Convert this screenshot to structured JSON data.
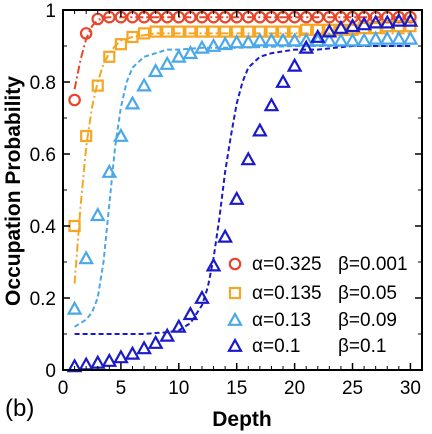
{
  "chart_data": {
    "type": "scatter",
    "panel_label": "(b)",
    "xlabel": "Depth",
    "ylabel": "Occupation Probability",
    "xlim": [
      0,
      31
    ],
    "ylim": [
      0,
      1
    ],
    "xticks": [
      0,
      5,
      10,
      15,
      20,
      25,
      30
    ],
    "yticks": [
      0,
      0.2,
      0.4,
      0.6,
      0.8,
      1
    ],
    "ytick_labels": [
      "0",
      "0.2",
      "0.4",
      "0.6",
      "0.8",
      "1"
    ],
    "legend_position": "lower-right",
    "series": [
      {
        "name": "α=0.325 β=0.001",
        "alpha_label": "α=0.325",
        "beta_label": "β=0.001",
        "marker": "circle",
        "color": "#e8462a",
        "x": [
          1,
          2,
          3,
          4,
          5,
          6,
          7,
          8,
          9,
          10,
          11,
          12,
          13,
          14,
          15,
          16,
          17,
          18,
          19,
          20,
          21,
          22,
          23,
          24,
          25,
          26,
          27,
          28,
          29,
          30
        ],
        "y": [
          0.75,
          0.935,
          0.975,
          0.98,
          0.98,
          0.98,
          0.98,
          0.98,
          0.98,
          0.98,
          0.98,
          0.98,
          0.98,
          0.98,
          0.98,
          0.98,
          0.98,
          0.98,
          0.98,
          0.98,
          0.98,
          0.98,
          0.98,
          0.98,
          0.98,
          0.98,
          0.98,
          0.98,
          0.98,
          0.98
        ],
        "curve": {
          "style": "dash-dot",
          "x": [
            1,
            1.5,
            2,
            2.5,
            3,
            3.5,
            4,
            5,
            6,
            8,
            10,
            15,
            20,
            25,
            30
          ],
          "y": [
            0.78,
            0.86,
            0.92,
            0.955,
            0.972,
            0.978,
            0.98,
            0.98,
            0.98,
            0.98,
            0.98,
            0.98,
            0.98,
            0.98,
            0.98
          ]
        }
      },
      {
        "name": "α=0.135 β=0.05",
        "alpha_label": "α=0.135",
        "beta_label": "β=0.05",
        "marker": "square",
        "color": "#f5a623",
        "x": [
          1,
          2,
          3,
          4,
          5,
          6,
          7,
          8,
          9,
          10,
          11,
          12,
          13,
          14,
          15,
          16,
          17,
          18,
          19,
          20,
          21,
          22,
          23,
          24,
          25,
          26,
          27,
          28,
          29,
          30
        ],
        "y": [
          0.4,
          0.65,
          0.79,
          0.87,
          0.905,
          0.925,
          0.935,
          0.94,
          0.94,
          0.94,
          0.94,
          0.94,
          0.94,
          0.94,
          0.94,
          0.94,
          0.94,
          0.94,
          0.94,
          0.94,
          0.945,
          0.945,
          0.945,
          0.945,
          0.945,
          0.95,
          0.95,
          0.955,
          0.955,
          0.955
        ],
        "curve": {
          "style": "dash-dot",
          "x": [
            1,
            1.5,
            2,
            2.5,
            3,
            3.5,
            4,
            4.5,
            5,
            6,
            7,
            8,
            10,
            15,
            20,
            25,
            30
          ],
          "y": [
            0.24,
            0.45,
            0.62,
            0.73,
            0.8,
            0.85,
            0.88,
            0.9,
            0.915,
            0.925,
            0.93,
            0.935,
            0.935,
            0.935,
            0.935,
            0.935,
            0.935
          ]
        }
      },
      {
        "name": "α=0.13 β=0.09",
        "alpha_label": "α=0.13",
        "beta_label": "β=0.09",
        "marker": "triangle",
        "color": "#4aa8e8",
        "x": [
          1,
          2,
          3,
          4,
          5,
          6,
          7,
          8,
          9,
          10,
          11,
          12,
          13,
          14,
          15,
          16,
          17,
          18,
          19,
          20,
          21,
          22,
          23,
          24,
          25,
          26,
          27,
          28,
          29,
          30
        ],
        "y": [
          0.17,
          0.31,
          0.43,
          0.55,
          0.65,
          0.74,
          0.79,
          0.83,
          0.85,
          0.87,
          0.88,
          0.895,
          0.9,
          0.905,
          0.91,
          0.91,
          0.915,
          0.915,
          0.915,
          0.915,
          0.915,
          0.915,
          0.915,
          0.915,
          0.915,
          0.915,
          0.92,
          0.92,
          0.92,
          0.92
        ],
        "curve": {
          "style": "dashed",
          "x": [
            1,
            1.5,
            2,
            2.5,
            3,
            3.5,
            4,
            4.5,
            5,
            5.5,
            6,
            7,
            8,
            9,
            10,
            12,
            15,
            20,
            25,
            30
          ],
          "y": [
            0.12,
            0.13,
            0.14,
            0.16,
            0.2,
            0.3,
            0.46,
            0.62,
            0.73,
            0.8,
            0.84,
            0.87,
            0.88,
            0.89,
            0.89,
            0.895,
            0.895,
            0.9,
            0.9,
            0.9
          ]
        }
      },
      {
        "name": "α=0.1 β=0.1",
        "alpha_label": "α=0.1",
        "beta_label": "β=0.1",
        "marker": "triangle",
        "color": "#1a1ac8",
        "x": [
          1,
          2,
          3,
          4,
          5,
          6,
          7,
          8,
          9,
          10,
          11,
          12,
          13,
          14,
          15,
          16,
          17,
          18,
          19,
          20,
          21,
          22,
          23,
          24,
          25,
          26,
          27,
          28,
          29,
          30
        ],
        "y": [
          0.01,
          0.015,
          0.02,
          0.025,
          0.035,
          0.045,
          0.06,
          0.075,
          0.095,
          0.12,
          0.155,
          0.2,
          0.29,
          0.37,
          0.475,
          0.585,
          0.665,
          0.735,
          0.8,
          0.845,
          0.895,
          0.925,
          0.94,
          0.95,
          0.955,
          0.96,
          0.965,
          0.965,
          0.97,
          0.97
        ],
        "curve": {
          "style": "dashed",
          "x": [
            1,
            3,
            5,
            7,
            9,
            10,
            11,
            12,
            12.5,
            13,
            13.5,
            14,
            14.5,
            15,
            15.5,
            16,
            17,
            18,
            20,
            22,
            25,
            30
          ],
          "y": [
            0.1,
            0.1,
            0.1,
            0.1,
            0.105,
            0.11,
            0.13,
            0.18,
            0.23,
            0.31,
            0.42,
            0.55,
            0.65,
            0.74,
            0.8,
            0.84,
            0.87,
            0.88,
            0.89,
            0.89,
            0.9,
            0.9
          ]
        }
      }
    ]
  }
}
